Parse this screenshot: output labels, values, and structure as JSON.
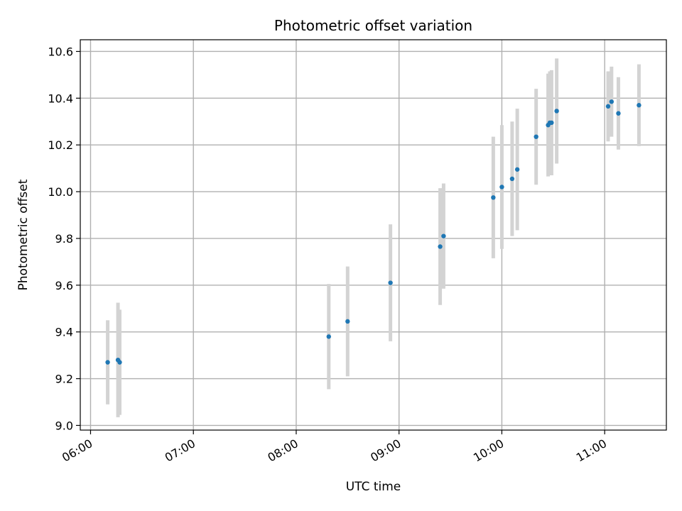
{
  "chart_data": {
    "type": "scatter",
    "title": "Photometric offset variation",
    "xlabel": "UTC time",
    "ylabel": "Photometric offset",
    "x_type": "time",
    "xlim": [
      "05:54",
      "11:36"
    ],
    "ylim": [
      8.98,
      10.65
    ],
    "x_ticks": [
      "06:00",
      "07:00",
      "08:00",
      "09:00",
      "10:00",
      "11:00"
    ],
    "y_ticks": [
      9.0,
      9.2,
      9.4,
      9.6,
      9.8,
      10.0,
      10.2,
      10.4,
      10.6
    ],
    "grid": true,
    "legend": "none",
    "colors": {
      "point": "#1f77b4",
      "errorbar": "#d3d3d3"
    },
    "points": [
      {
        "t": "06:10",
        "y": 9.27,
        "err": 0.18
      },
      {
        "t": "06:16",
        "y": 9.28,
        "err": 0.245
      },
      {
        "t": "06:17",
        "y": 9.27,
        "err": 0.225
      },
      {
        "t": "08:19",
        "y": 9.38,
        "err": 0.225
      },
      {
        "t": "08:30",
        "y": 9.445,
        "err": 0.235
      },
      {
        "t": "08:55",
        "y": 9.61,
        "err": 0.25
      },
      {
        "t": "09:24",
        "y": 9.765,
        "err": 0.25
      },
      {
        "t": "09:26",
        "y": 9.81,
        "err": 0.225
      },
      {
        "t": "09:55",
        "y": 9.975,
        "err": 0.26
      },
      {
        "t": "10:00",
        "y": 10.02,
        "err": 0.265
      },
      {
        "t": "10:06",
        "y": 10.055,
        "err": 0.245
      },
      {
        "t": "10:09",
        "y": 10.095,
        "err": 0.26
      },
      {
        "t": "10:20",
        "y": 10.235,
        "err": 0.205
      },
      {
        "t": "10:27",
        "y": 10.285,
        "err": 0.22
      },
      {
        "t": "10:28",
        "y": 10.295,
        "err": 0.22
      },
      {
        "t": "10:29",
        "y": 10.295,
        "err": 0.225
      },
      {
        "t": "10:32",
        "y": 10.345,
        "err": 0.225
      },
      {
        "t": "11:02",
        "y": 10.365,
        "err": 0.15
      },
      {
        "t": "11:04",
        "y": 10.385,
        "err": 0.15
      },
      {
        "t": "11:08",
        "y": 10.335,
        "err": 0.155
      },
      {
        "t": "11:20",
        "y": 10.37,
        "err": 0.175
      }
    ]
  }
}
